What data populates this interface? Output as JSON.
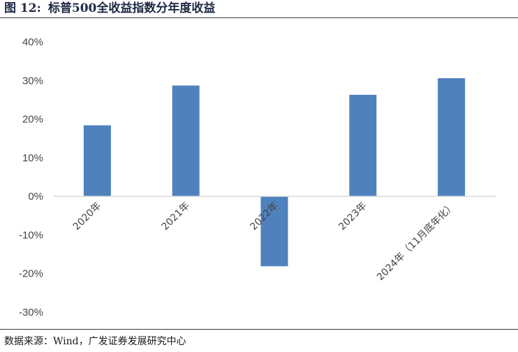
{
  "figure": {
    "number": "图 12:",
    "title": "标普500全收益指数分年度收益",
    "source": "数据来源：Wind，广发证券发展研究中心"
  },
  "chart_data": {
    "type": "bar",
    "title": "标普500全收益指数分年度收益",
    "xlabel": "",
    "ylabel": "",
    "categories": [
      "2020年",
      "2021年",
      "2022年",
      "2023年",
      "2024年（11月底年化）"
    ],
    "values": [
      18.4,
      28.7,
      -18.1,
      26.3,
      30.6
    ],
    "unit": "%",
    "ylim": [
      -30,
      40
    ],
    "yticks": [
      -30,
      -20,
      -10,
      0,
      10,
      20,
      30,
      40
    ],
    "ytick_labels": [
      "-30%",
      "-20%",
      "-10%",
      "0%",
      "10%",
      "20%",
      "30%",
      "40%"
    ],
    "grid": false,
    "legend": "none",
    "bar_color": "#4f81bd",
    "axis_color": "#d9d9d9"
  }
}
